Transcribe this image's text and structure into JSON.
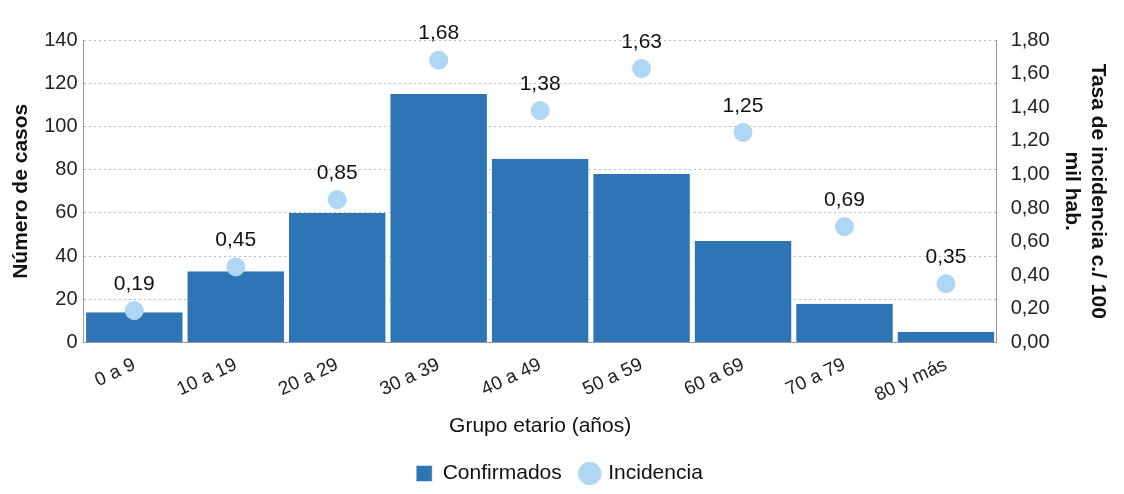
{
  "chart_data": {
    "type": "bar",
    "xlabel": "Grupo etario (años)",
    "ylabel": "Número de casos",
    "y2label": "Tasa de incidencia c./ 100 mil hab.",
    "categories": [
      "0 a 9",
      "10 a 19",
      "20 a 29",
      "30 a 39",
      "40 a 49",
      "50 a 59",
      "60 a 69",
      "70 a 79",
      "80 y más"
    ],
    "series": [
      {
        "name": "Confirmados",
        "color": "#2e75b6",
        "values": [
          14,
          33,
          60,
          115,
          85,
          78,
          47,
          18,
          5
        ]
      },
      {
        "name": "Incidencia",
        "type": "scatter",
        "axis": "y2",
        "color": "#aed6f5",
        "marker": "circle",
        "values": [
          0.19,
          0.45,
          0.85,
          1.68,
          1.38,
          1.63,
          1.25,
          0.69,
          0.35
        ],
        "value_labels": [
          "0,19",
          "0,45",
          "0,85",
          "1,68",
          "1,38",
          "1,63",
          "1,25",
          "0,69",
          "0,35"
        ]
      }
    ],
    "ylim": [
      0,
      140
    ],
    "yticks": [
      0,
      20,
      40,
      60,
      80,
      100,
      120,
      140
    ],
    "y2lim": [
      0,
      1.8
    ],
    "y2ticks": [
      {
        "value": 0,
        "label": "0,00"
      },
      {
        "value": 0.2,
        "label": "0,20"
      },
      {
        "value": 0.4,
        "label": "0,40"
      },
      {
        "value": 0.6,
        "label": "0,60"
      },
      {
        "value": 0.8,
        "label": "0,80"
      },
      {
        "value": 1,
        "label": "1,00"
      },
      {
        "value": 1.2,
        "label": "1,20"
      },
      {
        "value": 1.4,
        "label": "1,40"
      },
      {
        "value": 1.6,
        "label": "1,60"
      },
      {
        "value": 1.8,
        "label": "1,80"
      }
    ],
    "grid": "y",
    "legend": "bottom"
  }
}
